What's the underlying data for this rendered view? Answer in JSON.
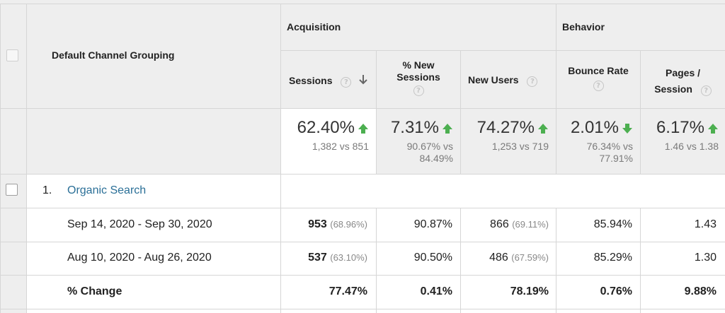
{
  "header": {
    "dimension_label": "Default Channel Grouping",
    "acquisition_label": "Acquisition",
    "behavior_label": "Behavior",
    "columns": {
      "sessions": "Sessions",
      "new_sessions_1": "% New",
      "new_sessions_2": "Sessions",
      "new_users": "New Users",
      "bounce_rate": "Bounce Rate",
      "pages_session_1": "Pages /",
      "pages_session_2": "Session"
    },
    "help_glyph": "?"
  },
  "totals": {
    "sessions": {
      "value": "62.40%",
      "sub": "1,382 vs 851",
      "direction": "up"
    },
    "new_sessions": {
      "value": "7.31%",
      "sub1": "90.67% vs",
      "sub2": "84.49%",
      "direction": "up"
    },
    "new_users": {
      "value": "74.27%",
      "sub": "1,253 vs 719",
      "direction": "up"
    },
    "bounce_rate": {
      "value": "2.01%",
      "sub1": "76.34% vs",
      "sub2": "77.91%",
      "direction": "down"
    },
    "pages_session": {
      "value": "6.17%",
      "sub": "1.46 vs 1.38",
      "direction": "up"
    }
  },
  "rows": {
    "channel": {
      "index": "1.",
      "name": "Organic Search"
    },
    "period1": {
      "label": "Sep 14, 2020 - Sep 30, 2020",
      "sessions": "953",
      "sessions_pct": "(68.96%)",
      "new_sessions": "90.87%",
      "new_users": "866",
      "new_users_pct": "(69.11%)",
      "bounce_rate": "85.94%",
      "pages_session": "1.43"
    },
    "period2": {
      "label": "Aug 10, 2020 - Aug 26, 2020",
      "sessions": "537",
      "sessions_pct": "(63.10%)",
      "new_sessions": "90.50%",
      "new_users": "486",
      "new_users_pct": "(67.59%)",
      "bounce_rate": "85.29%",
      "pages_session": "1.30"
    },
    "change": {
      "label": "% Change",
      "sessions": "77.47%",
      "new_sessions": "0.41%",
      "new_users": "78.19%",
      "bounce_rate": "0.76%",
      "pages_session": "9.88%"
    }
  },
  "colors": {
    "up_arrow": "#4caf50",
    "down_arrow": "#4caf50",
    "link": "#2a6f97",
    "header_bg": "#eeeeee"
  }
}
